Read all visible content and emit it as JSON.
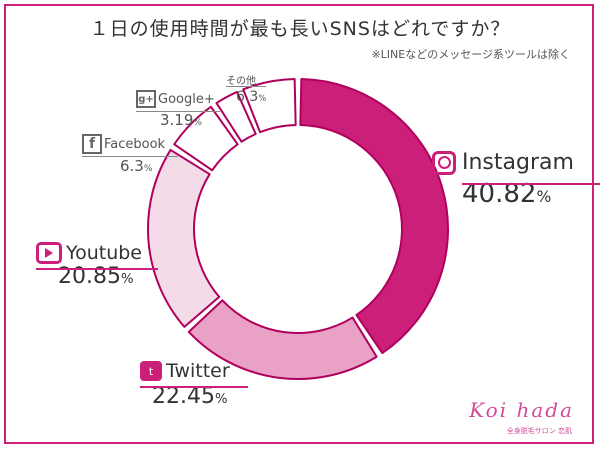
{
  "title": "１日の使用時間が最も長いSNSはどれですか？",
  "note": "※LINEなどのメッセージ系ツールは除く",
  "chart_data": {
    "type": "pie",
    "style": "donut",
    "title": "１日の使用時間が最も長いSNSはどれですか？",
    "slices": [
      {
        "name": "Instagram",
        "value": 40.82,
        "value_label": "40.82",
        "color": "#cc1f7a",
        "icon": "instagram-icon"
      },
      {
        "name": "Twitter",
        "value": 22.45,
        "value_label": "22.45",
        "color": "#e9a1c6",
        "icon": "twitter-icon"
      },
      {
        "name": "Youtube",
        "value": 20.85,
        "value_label": "20.85",
        "color": "#f4dbe8",
        "icon": "youtube-icon"
      },
      {
        "name": "Facebook",
        "value": 6.3,
        "value_label": "6.3",
        "color": "#ffffff",
        "icon": "facebook-icon"
      },
      {
        "name": "Google+",
        "value": 3.19,
        "value_label": "3.19",
        "color": "#ffffff",
        "icon": "googleplus-icon"
      },
      {
        "name": "その他",
        "value": 6.3,
        "value_label": "6.3",
        "color": "#ffffff",
        "icon": ""
      }
    ],
    "unit": "%",
    "legend": "none"
  },
  "colors": {
    "accent": "#cc1f7a",
    "gray": "#777777"
  },
  "brand": {
    "name": "Koi hada",
    "sub": "全身脱毛サロン 恋肌"
  }
}
